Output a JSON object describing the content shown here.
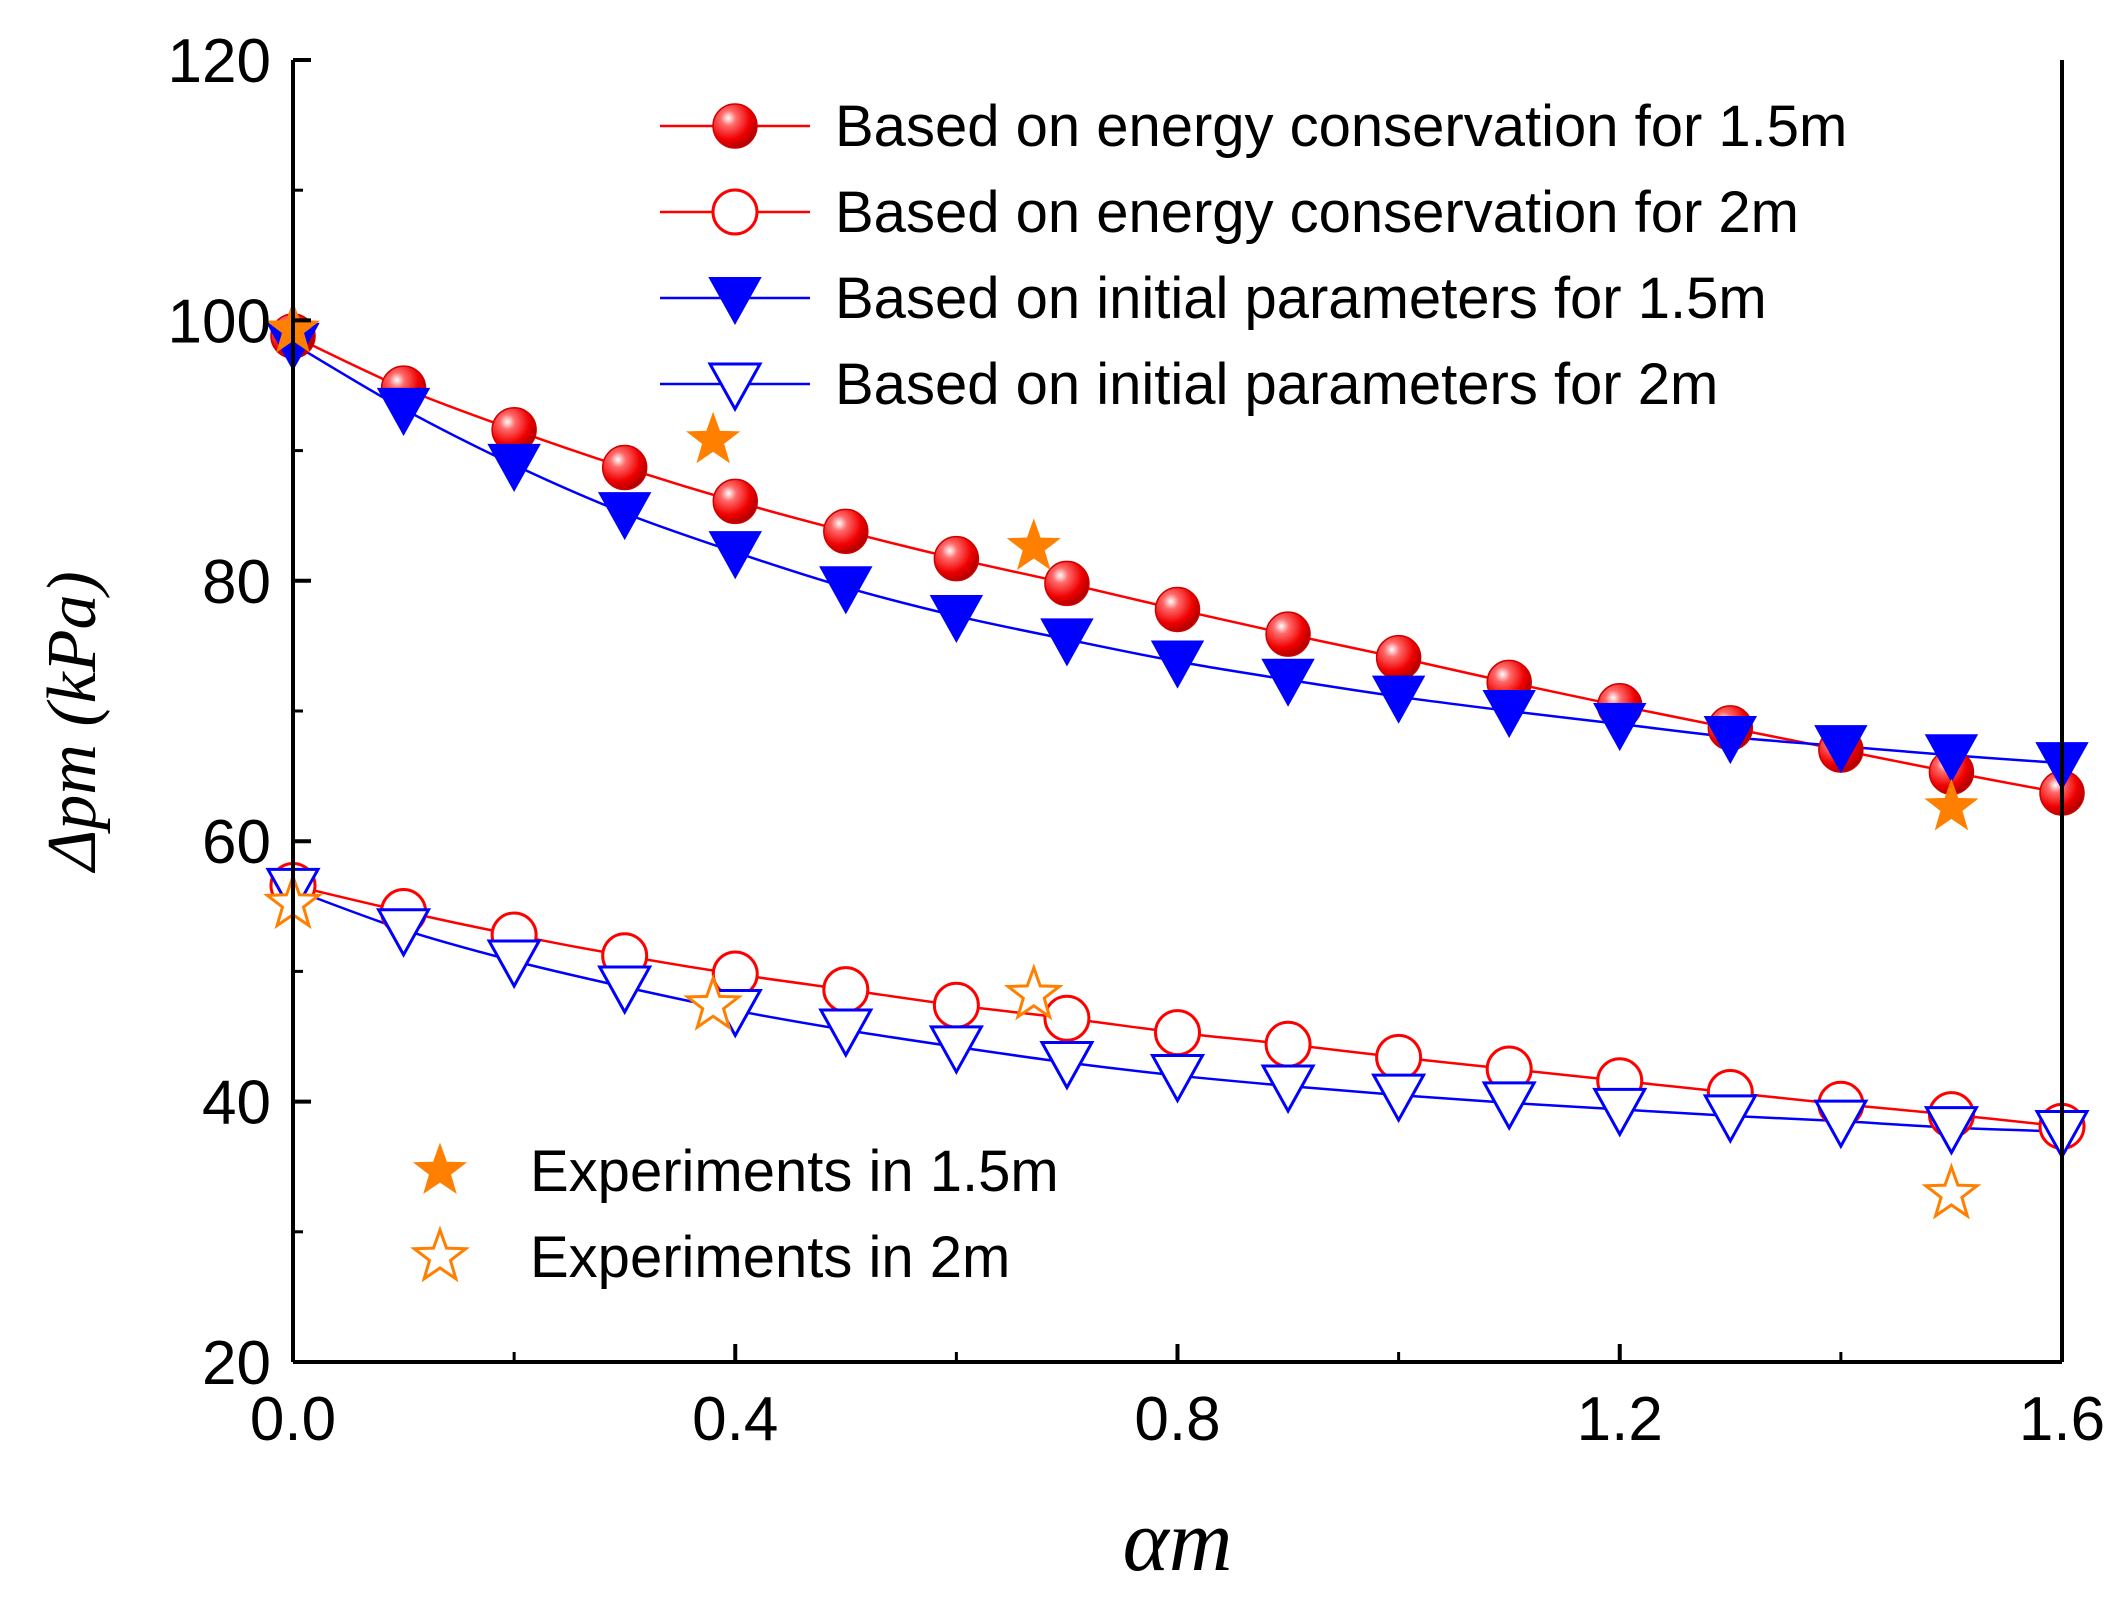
{
  "chart_data": {
    "type": "line",
    "xlabel": "αm",
    "ylabel": "Δpm (kPa)",
    "xlim": [
      0,
      1.6
    ],
    "ylim": [
      20,
      120
    ],
    "x_ticks": [
      "0.0",
      "0.4",
      "0.8",
      "1.2",
      "1.6"
    ],
    "y_ticks": [
      "20",
      "40",
      "60",
      "80",
      "100",
      "120"
    ],
    "grid": false,
    "legend_top": "top-right",
    "legend_bottom": "bottom-left",
    "series": [
      {
        "name": "Based on energy conservation for 1.5m",
        "color": "#ff0000",
        "marker": "filled-circle",
        "x": [
          0,
          0.1,
          0.2,
          0.3,
          0.4,
          0.5,
          0.6,
          0.7,
          0.8,
          0.9,
          1.0,
          1.1,
          1.2,
          1.3,
          1.4,
          1.5,
          1.6
        ],
        "y": [
          98.8,
          94.8,
          91.6,
          88.7,
          86.1,
          83.8,
          81.7,
          79.8,
          77.8,
          75.9,
          74.1,
          72.2,
          70.4,
          68.7,
          67.0,
          65.3,
          63.7
        ]
      },
      {
        "name": "Based on energy conservation for 2m",
        "color": "#ff0000",
        "marker": "open-circle",
        "x": [
          0,
          0.1,
          0.2,
          0.3,
          0.4,
          0.5,
          0.6,
          0.7,
          0.8,
          0.9,
          1.0,
          1.1,
          1.2,
          1.3,
          1.4,
          1.5,
          1.6
        ],
        "y": [
          56.6,
          54.6,
          52.8,
          51.2,
          49.8,
          48.6,
          47.4,
          46.4,
          45.3,
          44.4,
          43.4,
          42.5,
          41.6,
          40.7,
          39.8,
          39.0,
          38.1
        ]
      },
      {
        "name": "Based on initial parameters for 1.5m",
        "color": "#0000ff",
        "marker": "filled-triangle-down",
        "x": [
          0,
          0.1,
          0.2,
          0.3,
          0.4,
          0.5,
          0.6,
          0.7,
          0.8,
          0.9,
          1.0,
          1.1,
          1.2,
          1.3,
          1.4,
          1.5,
          1.6
        ],
        "y": [
          98.2,
          93.2,
          88.9,
          85.2,
          82.2,
          79.5,
          77.3,
          75.5,
          73.8,
          72.4,
          71.1,
          70.0,
          69.0,
          68.0,
          67.3,
          66.6,
          66.0
        ]
      },
      {
        "name": "Based on initial parameters for 2m",
        "color": "#0000ff",
        "marker": "open-triangle-down",
        "x": [
          0,
          0.1,
          0.2,
          0.3,
          0.4,
          0.5,
          0.6,
          0.7,
          0.8,
          0.9,
          1.0,
          1.1,
          1.2,
          1.3,
          1.4,
          1.5,
          1.6
        ],
        "y": [
          56.3,
          53.2,
          50.8,
          48.8,
          47.0,
          45.5,
          44.2,
          43.0,
          42.0,
          41.2,
          40.5,
          39.9,
          39.4,
          38.9,
          38.5,
          38.0,
          37.7
        ]
      },
      {
        "name": "Experiments in 1.5m",
        "color": "#ff8000",
        "marker": "filled-star",
        "x": [
          0.0,
          0.38,
          0.67,
          1.5
        ],
        "y": [
          99.3,
          90.8,
          82.6,
          62.6
        ]
      },
      {
        "name": "Experiments in 2m",
        "color": "#ff8000",
        "marker": "open-star",
        "x": [
          0.0,
          0.38,
          0.67,
          1.5
        ],
        "y": [
          55.2,
          47.4,
          48.2,
          32.9
        ]
      }
    ],
    "legend_series_top": [
      0,
      1,
      2,
      3
    ],
    "legend_series_bottom": [
      4,
      5
    ]
  }
}
